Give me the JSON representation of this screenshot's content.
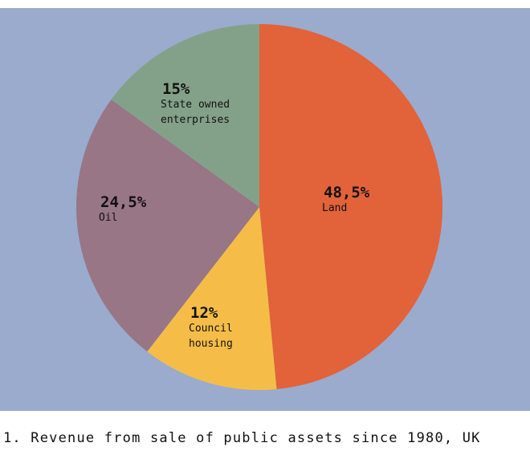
{
  "chart_data": {
    "type": "pie",
    "title": "",
    "slices": [
      {
        "label_lines": [
          "Land"
        ],
        "value_label": "48,5%",
        "value": 48.5,
        "color": "#e2623a"
      },
      {
        "label_lines": [
          "Council",
          "housing"
        ],
        "value_label": "12%",
        "value": 12,
        "color": "#f5bd48"
      },
      {
        "label_lines": [
          "Oil"
        ],
        "value_label": "24,5%",
        "value": 24.5,
        "color": "#987685"
      },
      {
        "label_lines": [
          "State owned",
          "enterprises"
        ],
        "value_label": "15%",
        "value": 15,
        "color": "#83a188"
      }
    ],
    "background_color": "#9aabcd"
  },
  "caption": "1. Revenue from sale of public assets since 1980, UK"
}
